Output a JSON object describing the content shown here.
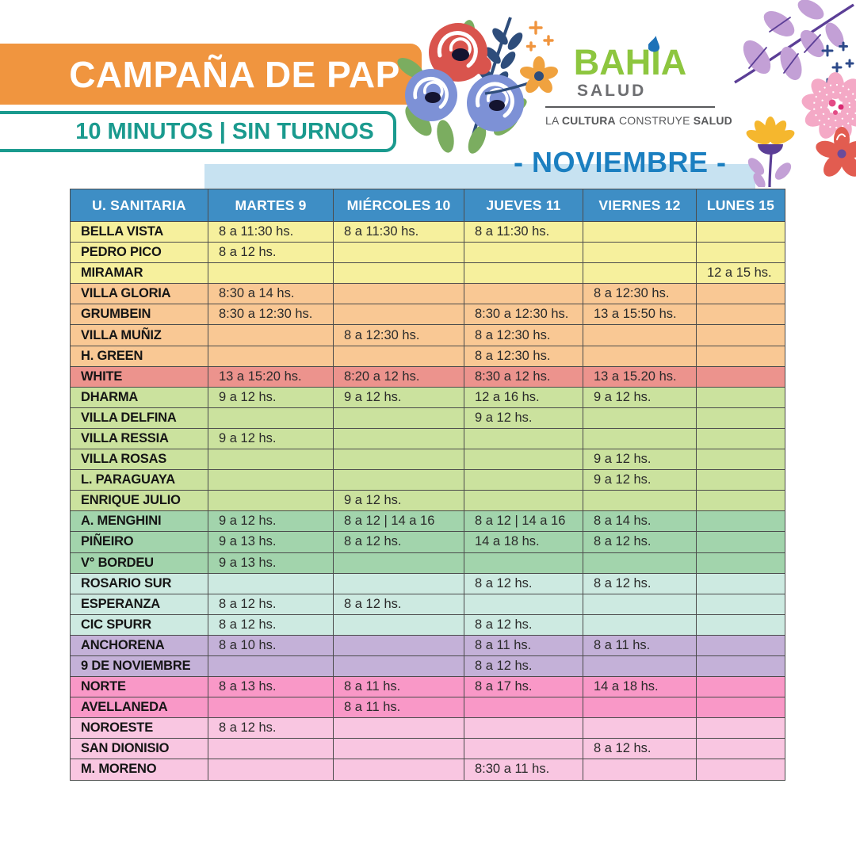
{
  "poster": {
    "title": "CAMPAÑA DE PAP",
    "subtitle": "10 MINUTOS | SIN TURNOS",
    "month_label": "- NOVIEMBRE -"
  },
  "logo": {
    "brand": "BAHIA",
    "brand_sub": "SALUD",
    "tagline_part1": "LA ",
    "tagline_part2": "CULTURA",
    "tagline_part3": " CONSTRUYE ",
    "tagline_part4": "SALUD"
  },
  "colors": {
    "banner_orange": "#f0953f",
    "subtitle_teal": "#1a9a8e",
    "header_blue": "#3e8ec5",
    "band_blue": "#c7e2f1",
    "month_blue": "#1b7fc0",
    "logo_green": "#8dc63f",
    "logo_gray": "#6d6e71",
    "cell_border": "#4c4c4c",
    "groups": {
      "yellow": "#f6f09d",
      "orange": "#f9c894",
      "red": "#ec938d",
      "green": "#cbe29e",
      "teal_green": "#a2d4ac",
      "cyan": "#cdeae1",
      "purple": "#c4b1d8",
      "pink": "#f998c7",
      "light_pink": "#f9c6e1"
    }
  },
  "table": {
    "columns": [
      "U. SANITARIA",
      "MARTES 9",
      "MIÉRCOLES 10",
      "JUEVES 11",
      "VIERNES 12",
      "LUNES 15"
    ],
    "rows": [
      {
        "unit": "BELLA VISTA",
        "group": "yellow",
        "times": [
          "8 a 11:30 hs.",
          "8 a 11:30 hs.",
          "8 a 11:30 hs.",
          "",
          ""
        ]
      },
      {
        "unit": "PEDRO PICO",
        "group": "yellow",
        "times": [
          "8 a 12 hs.",
          "",
          "",
          "",
          ""
        ]
      },
      {
        "unit": "MIRAMAR",
        "group": "yellow",
        "times": [
          "",
          "",
          "",
          "",
          "12 a 15 hs."
        ]
      },
      {
        "unit": "VILLA GLORIA",
        "group": "orange",
        "times": [
          "8:30 a 14 hs.",
          "",
          "",
          "8 a 12:30 hs.",
          ""
        ]
      },
      {
        "unit": "GRUMBEIN",
        "group": "orange",
        "times": [
          "8:30 a 12:30 hs.",
          "",
          "8:30 a 12:30 hs.",
          "13 a 15:50 hs.",
          ""
        ]
      },
      {
        "unit": "VILLA MUÑIZ",
        "group": "orange",
        "times": [
          "",
          "8 a 12:30 hs.",
          "8 a 12:30 hs.",
          "",
          ""
        ]
      },
      {
        "unit": "H. GREEN",
        "group": "orange",
        "times": [
          "",
          "",
          "8 a 12:30 hs.",
          "",
          ""
        ]
      },
      {
        "unit": "WHITE",
        "group": "red",
        "times": [
          "13 a 15:20 hs.",
          "8:20 a 12 hs.",
          "8:30 a 12 hs.",
          "13 a 15.20 hs.",
          ""
        ]
      },
      {
        "unit": "DHARMA",
        "group": "green",
        "times": [
          "9 a 12 hs.",
          "9 a 12 hs.",
          "12 a 16 hs.",
          "9 a 12 hs.",
          ""
        ]
      },
      {
        "unit": "VILLA DELFINA",
        "group": "green",
        "times": [
          "",
          "",
          "9 a 12 hs.",
          "",
          ""
        ]
      },
      {
        "unit": "VILLA RESSIA",
        "group": "green",
        "times": [
          "9 a 12 hs.",
          "",
          "",
          "",
          ""
        ]
      },
      {
        "unit": "VILLA ROSAS",
        "group": "green",
        "times": [
          "",
          "",
          "",
          "9 a 12 hs.",
          ""
        ]
      },
      {
        "unit": "L. PARAGUAYA",
        "group": "green",
        "times": [
          "",
          "",
          "",
          "9 a 12 hs.",
          ""
        ]
      },
      {
        "unit": "ENRIQUE JULIO",
        "group": "green",
        "times": [
          "",
          "9 a 12 hs.",
          "",
          "",
          ""
        ]
      },
      {
        "unit": "A. MENGHINI",
        "group": "teal_green",
        "times": [
          "9 a 12 hs.",
          "8 a 12 | 14 a 16",
          "8 a 12 | 14 a 16",
          "8 a 14 hs.",
          ""
        ]
      },
      {
        "unit": "PIÑEIRO",
        "group": "teal_green",
        "times": [
          "9 a 13 hs.",
          "8 a 12 hs.",
          "14 a 18 hs.",
          "8 a 12 hs.",
          ""
        ]
      },
      {
        "unit": "V° BORDEU",
        "group": "teal_green",
        "times": [
          "9 a 13 hs.",
          "",
          "",
          "",
          ""
        ]
      },
      {
        "unit": "ROSARIO SUR",
        "group": "cyan",
        "times": [
          "",
          "",
          "8 a 12 hs.",
          "8 a 12 hs.",
          ""
        ]
      },
      {
        "unit": "ESPERANZA",
        "group": "cyan",
        "times": [
          "8 a 12 hs.",
          "8 a 12 hs.",
          "",
          "",
          ""
        ]
      },
      {
        "unit": "CIC SPURR",
        "group": "cyan",
        "times": [
          "8 a 12 hs.",
          "",
          "8 a 12 hs.",
          "",
          ""
        ]
      },
      {
        "unit": "ANCHORENA",
        "group": "purple",
        "times": [
          "8 a 10 hs.",
          "",
          "8 a 11 hs.",
          "8 a 11 hs.",
          ""
        ]
      },
      {
        "unit": "9 DE NOVIEMBRE",
        "group": "purple",
        "times": [
          "",
          "",
          "8 a 12 hs.",
          "",
          ""
        ]
      },
      {
        "unit": "NORTE",
        "group": "pink",
        "times": [
          "8 a 13 hs.",
          "8 a 11 hs.",
          "8 a 17 hs.",
          "14 a 18 hs.",
          ""
        ]
      },
      {
        "unit": "AVELLANEDA",
        "group": "pink",
        "times": [
          "",
          "8 a 11 hs.",
          "",
          "",
          ""
        ]
      },
      {
        "unit": "NOROESTE",
        "group": "light_pink",
        "times": [
          "8 a 12 hs.",
          "",
          "",
          "",
          ""
        ]
      },
      {
        "unit": "SAN DIONISIO",
        "group": "light_pink",
        "times": [
          "",
          "",
          "",
          "8 a 12 hs.",
          ""
        ]
      },
      {
        "unit": "M. MORENO",
        "group": "light_pink",
        "times": [
          "",
          "",
          "8:30 a 11 hs.",
          "",
          ""
        ]
      }
    ]
  }
}
